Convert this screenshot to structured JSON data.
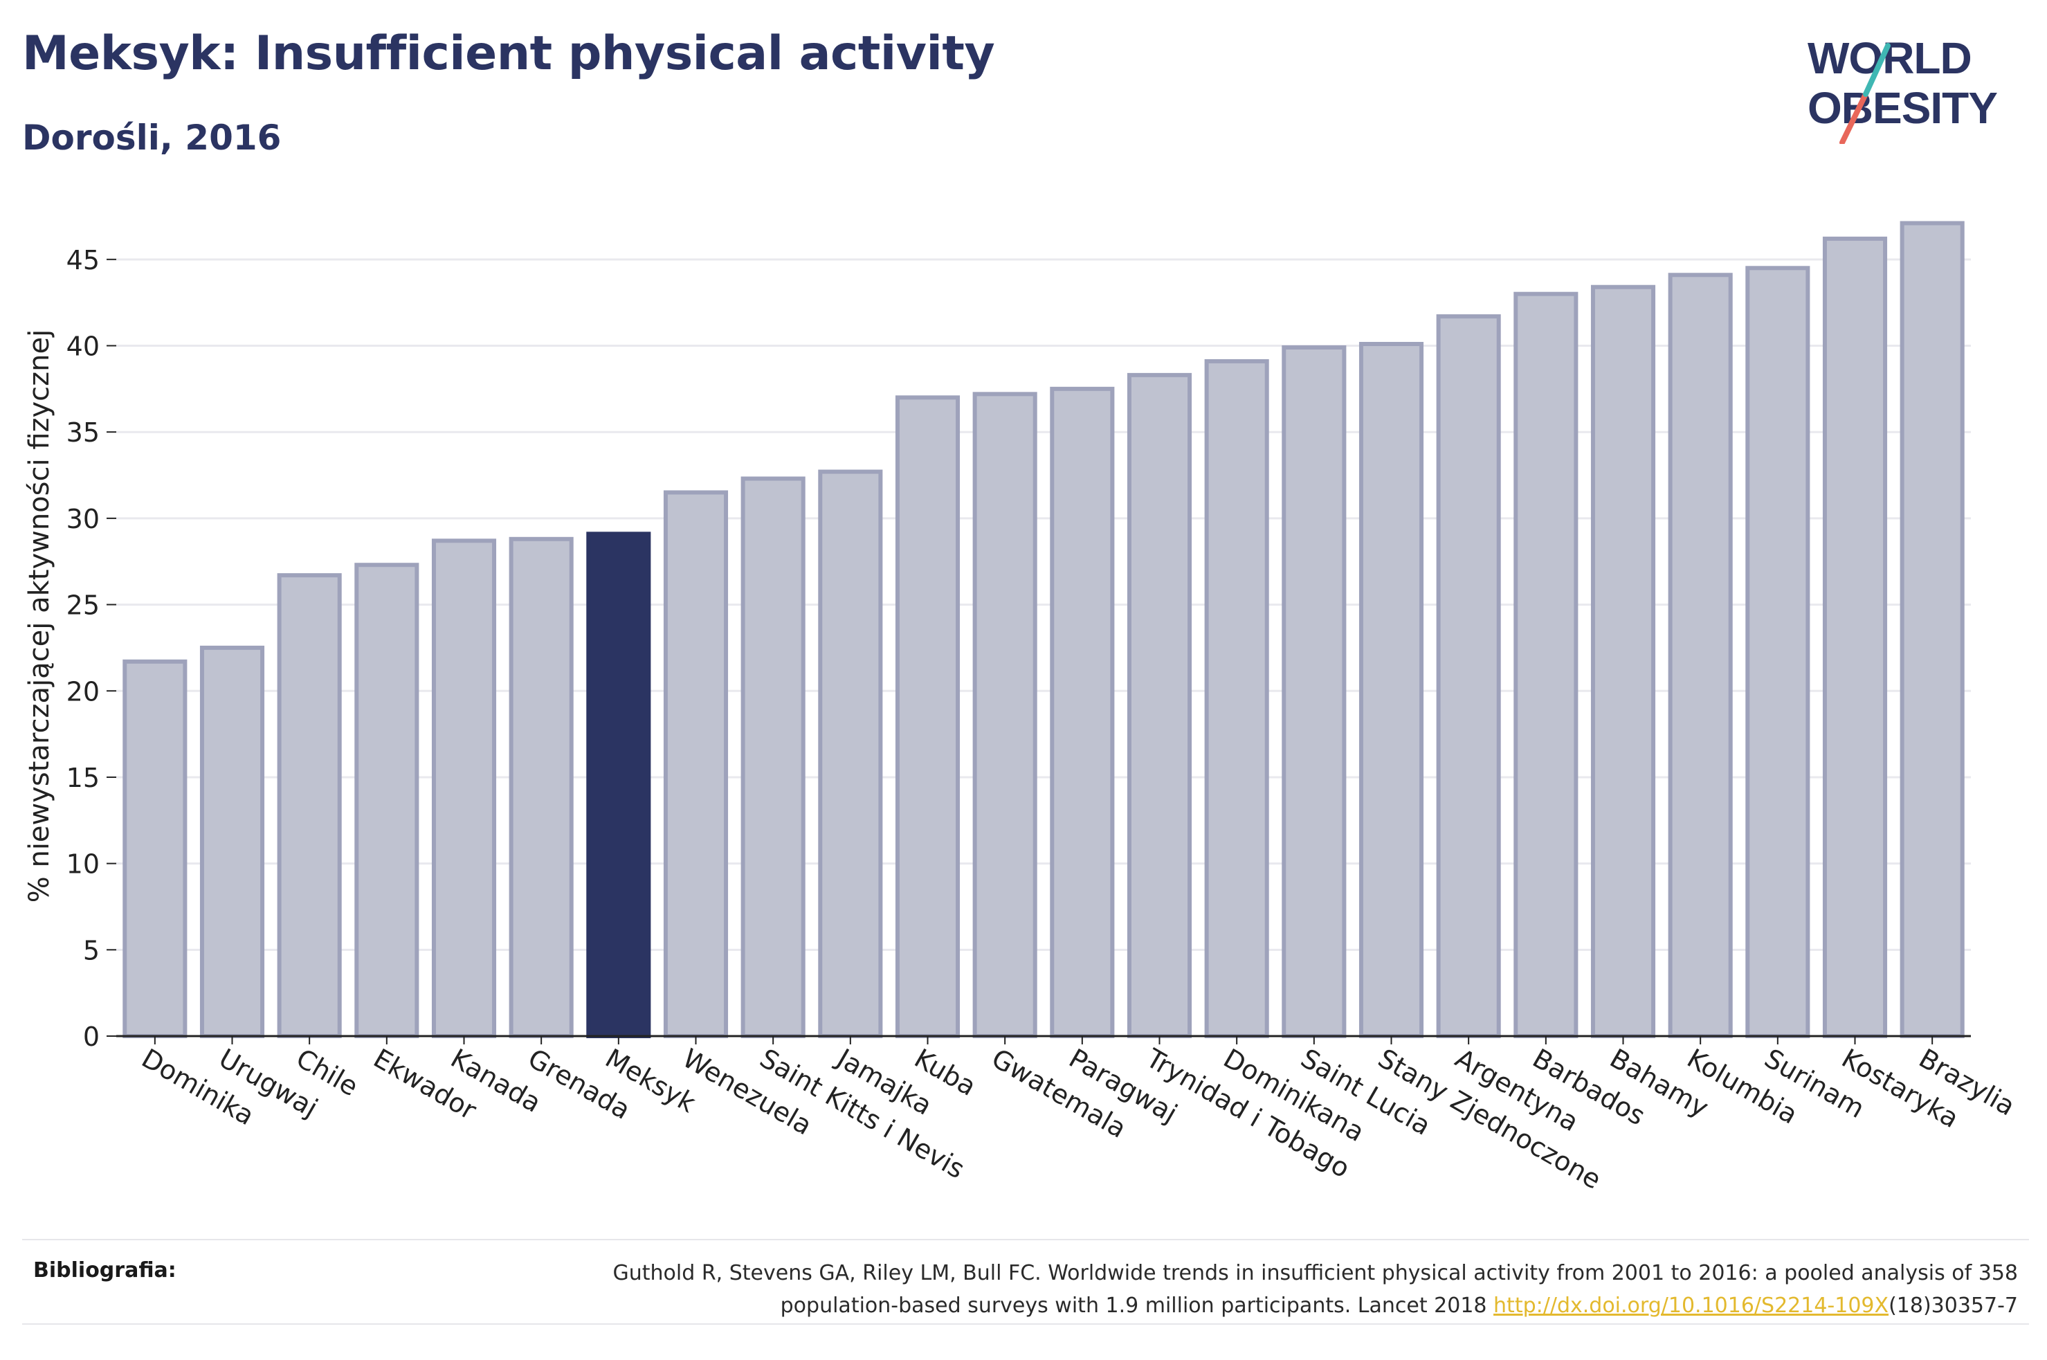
{
  "header": {
    "title": "Meksyk: Insufficient physical activity",
    "subtitle": "Dorośli, 2016"
  },
  "logo": {
    "line1": "WORLD",
    "line2": "OBESITY",
    "text_color": "#2b3462",
    "slash_color_top": "#3fb7b3",
    "slash_color_bottom": "#e8675a"
  },
  "colors": {
    "bar": "#bfc2d0",
    "bar_border": "#9ea2bb",
    "highlight": "#2b3462",
    "grid": "#e9e9ee",
    "axis": "#222222"
  },
  "chart_data": {
    "type": "bar",
    "title": "Meksyk: Insufficient physical activity",
    "subtitle": "Dorośli, 2016",
    "xlabel": "",
    "ylabel": "% niewystarczającej aktywności fizycznej",
    "ylim": [
      0,
      48
    ],
    "yticks": [
      0,
      5,
      10,
      15,
      20,
      25,
      30,
      35,
      40,
      45
    ],
    "grid": true,
    "highlight": "Meksyk",
    "categories": [
      "Dominika",
      "Urugwaj",
      "Chile",
      "Ekwador",
      "Kanada",
      "Grenada",
      "Meksyk",
      "Wenezuela",
      "Saint Kitts i Nevis",
      "Jamajka",
      "Kuba",
      "Gwatemala",
      "Paragwaj",
      "Trynidad i Tobago",
      "Dominikana",
      "Saint Lucia",
      "Stany Zjednoczone",
      "Argentyna",
      "Barbados",
      "Bahamy",
      "Kolumbia",
      "Surinam",
      "Kostaryka",
      "Brazylia"
    ],
    "values": [
      21.7,
      22.5,
      26.7,
      27.3,
      28.7,
      28.8,
      29.1,
      31.5,
      32.3,
      32.7,
      37.0,
      37.2,
      37.5,
      38.3,
      39.1,
      39.9,
      40.1,
      41.7,
      43.0,
      43.4,
      44.1,
      44.5,
      46.2,
      47.1
    ]
  },
  "bibliography": {
    "label": "Bibliografia:",
    "text_line1": "Guthold R, Stevens GA, Riley LM, Bull FC. Worldwide trends in insufficient physical activity from 2001 to 2016: a pooled analysis of 358",
    "text_line2_pre": "population-based surveys with 1.9 million participants. Lancet 2018 ",
    "link": "http://dx.doi.org/10.1016/S2214-109X",
    "text_line2_post": "(18)30357-7"
  }
}
